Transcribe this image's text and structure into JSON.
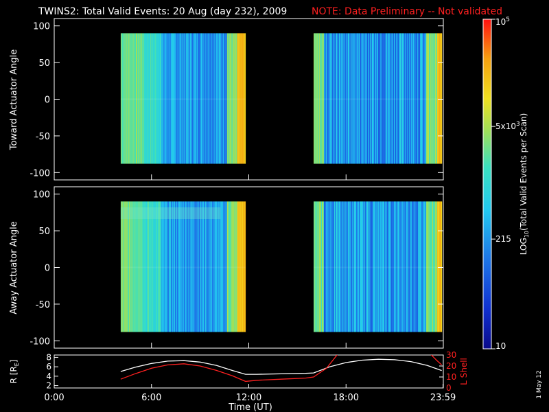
{
  "header": {
    "title": "TWINS2: Total Valid Events: 20 Aug (day 232), 2009",
    "note": "NOTE: Data Preliminary -- Not validated"
  },
  "footer": {
    "date_stamp": "1 May 12"
  },
  "colors": {
    "background": "#000000",
    "axis": "#ffffff",
    "note_text": "#ff2020",
    "r_line": "#ffffff",
    "lshell_line": "#ff2020"
  },
  "chart_data": [
    {
      "type": "heatmap",
      "panel": "top",
      "ylabel": "Toward Actuator Angle",
      "xlim": [
        0,
        24
      ],
      "ylim": [
        -110,
        110
      ],
      "yticks": [
        100,
        50,
        0,
        -50,
        -100
      ],
      "data_y_range": [
        -88,
        90
      ],
      "coverage": [
        [
          4.1,
          11.8
        ],
        [
          16.0,
          23.9
        ]
      ],
      "grid": false
    },
    {
      "type": "heatmap",
      "panel": "middle",
      "ylabel": "Away Actuator Angle",
      "xlim": [
        0,
        24
      ],
      "ylim": [
        -110,
        110
      ],
      "yticks": [
        100,
        50,
        0,
        -50,
        -100
      ],
      "data_y_range": [
        -88,
        90
      ],
      "coverage": [
        [
          4.1,
          11.8
        ],
        [
          16.0,
          23.9
        ]
      ],
      "grid": false
    },
    {
      "type": "line",
      "panel": "orbit",
      "xlabel": "Time (UT)",
      "xticks": [
        "0:00",
        "6:00",
        "12:00",
        "18:00",
        "23:59"
      ],
      "ylabel_left": "R [R",
      "ylabel_left_sub": "E",
      "ylabel_left_end": "]",
      "ylabel_right": "L Shell",
      "left_ylim": [
        1.5,
        8.5
      ],
      "left_yticks": [
        "8",
        "6",
        "4",
        "2"
      ],
      "right_ylim": [
        0,
        30
      ],
      "right_yticks": [
        "30",
        "20",
        "10",
        "0"
      ],
      "series": [
        {
          "axis": "left",
          "x": [
            4.1,
            5,
            6,
            7,
            8,
            9,
            10,
            11,
            11.8,
            12.5,
            14,
            15.5,
            16.0,
            17,
            18,
            19,
            20,
            21,
            22,
            23,
            23.9
          ],
          "y": [
            5.0,
            5.9,
            6.7,
            7.2,
            7.3,
            7.0,
            6.3,
            5.2,
            4.4,
            4.4,
            4.5,
            4.6,
            4.7,
            6.0,
            6.9,
            7.4,
            7.6,
            7.5,
            7.1,
            6.3,
            5.2
          ]
        },
        {
          "axis": "right",
          "x": [
            4.1,
            5,
            6,
            7,
            8,
            9,
            10,
            11,
            11.8,
            12.5,
            14,
            15.5,
            16.0,
            16.8,
            17.5,
            23.2,
            23.6,
            23.9
          ],
          "y": [
            8,
            13,
            18,
            21,
            22,
            20,
            16,
            11,
            6,
            7,
            8,
            9,
            10,
            18,
            31,
            31,
            25,
            21
          ]
        }
      ]
    }
  ],
  "colorbar": {
    "label": "LOG",
    "label_sub": "10",
    "label_end": "(Total Valid  Events per Scan)",
    "ticks": [
      {
        "base": "10",
        "sup": "5",
        "log": 5.0
      },
      {
        "base": "5x10",
        "sup": "3",
        "log": 3.699
      },
      {
        "base": "215",
        "sup": "",
        "log": 2.332
      },
      {
        "base": "10",
        "sup": "",
        "log": 1.0
      }
    ],
    "range_log": [
      1.0,
      5.0
    ]
  }
}
